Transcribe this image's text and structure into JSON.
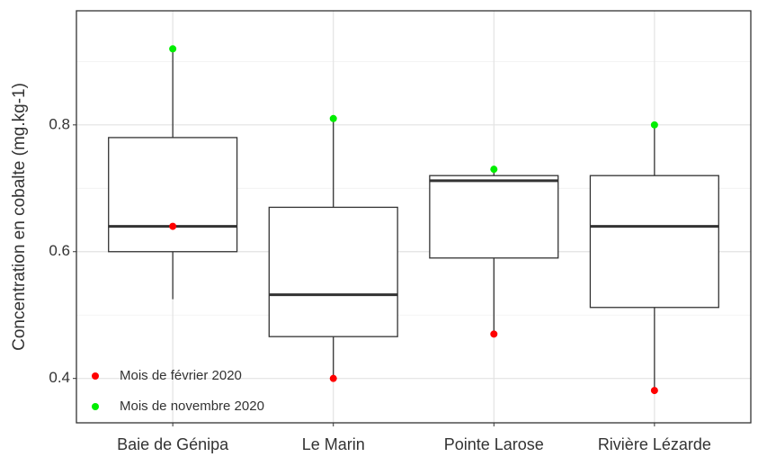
{
  "chart_data": {
    "type": "boxplot",
    "y_label": "Concentration en cobalte (mg.kg-1)",
    "categories": [
      "Baie de Génipa",
      "Le Marin",
      "Pointe Larose",
      "Rivière Lézarde"
    ],
    "boxes": [
      {
        "whisker_low": 0.525,
        "q1": 0.6,
        "median": 0.64,
        "q3": 0.78,
        "whisker_high": 0.92
      },
      {
        "whisker_low": 0.4,
        "q1": 0.466,
        "median": 0.532,
        "q3": 0.67,
        "whisker_high": 0.81
      },
      {
        "whisker_low": 0.47,
        "q1": 0.59,
        "median": 0.712,
        "q3": 0.72,
        "whisker_high": 0.73
      },
      {
        "whisker_low": 0.381,
        "q1": 0.512,
        "median": 0.64,
        "q3": 0.72,
        "whisker_high": 0.8
      }
    ],
    "series": [
      {
        "name": "Mois de février 2020",
        "color": "#ff0000",
        "values": [
          0.64,
          0.4,
          0.47,
          0.381
        ]
      },
      {
        "name": "Mois de novembre 2020",
        "color": "#00ee00",
        "values": [
          0.92,
          0.81,
          0.73,
          0.8
        ]
      }
    ],
    "ylim": [
      0.33,
      0.98
    ],
    "yticks": [
      {
        "value": 0.4,
        "label": "0.4"
      },
      {
        "value": 0.6,
        "label": "0.6"
      },
      {
        "value": 0.8,
        "label": "0.8"
      }
    ],
    "y_minor_gridlines": [
      0.5,
      0.7,
      0.9
    ],
    "grid": true,
    "legend_position": "bottom-left"
  }
}
